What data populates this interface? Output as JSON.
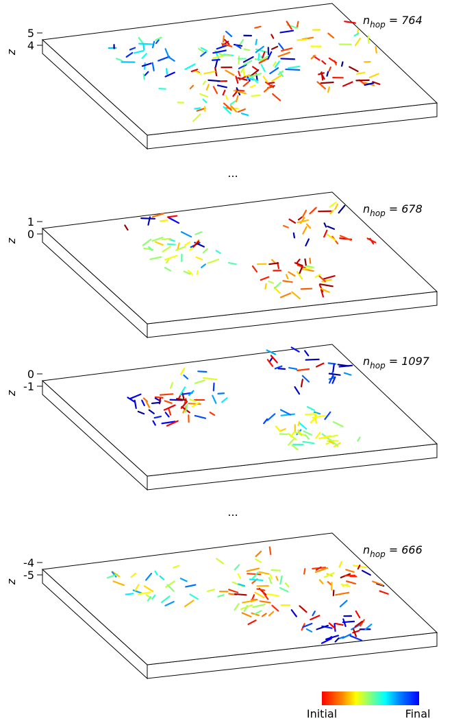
{
  "panels": [
    {
      "z_label": "z",
      "z_ticks": [
        "5",
        "4"
      ],
      "n_base": "n",
      "n_sub": "hop",
      "n_value": "= 764"
    },
    {
      "z_label": "z",
      "z_ticks": [
        "1",
        "0"
      ],
      "n_base": "n",
      "n_sub": "hop",
      "n_value": "= 678"
    },
    {
      "z_label": "z",
      "z_ticks": [
        "0",
        "-1"
      ],
      "n_base": "n",
      "n_sub": "hop",
      "n_value": "= 1097"
    },
    {
      "z_label": "z",
      "z_ticks": [
        "-4",
        "-5"
      ],
      "n_base": "n",
      "n_sub": "hop",
      "n_value": "= 666"
    }
  ],
  "ellipses": [
    "...",
    "..."
  ],
  "colorbar": {
    "min_label": "Initial",
    "max_label": "Final"
  }
}
